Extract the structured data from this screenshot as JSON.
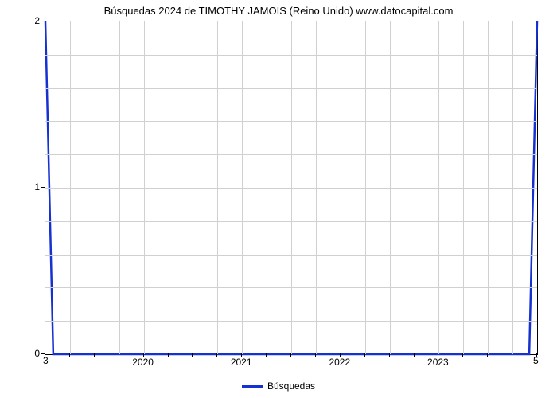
{
  "chart": {
    "type": "line",
    "title": "Búsquedas 2024 de TIMOTHY JAMOIS (Reino Unido) www.datocapital.com",
    "title_fontsize": 13,
    "background_color": "#ffffff",
    "grid_color": "#d0d0d0",
    "axis_color": "#000000",
    "series": [
      {
        "name": "Búsquedas",
        "color": "#1531d1",
        "line_width": 2.5,
        "x": [
          2019.0,
          2019.08,
          2023.92,
          2024.0
        ],
        "y": [
          2.0,
          0.0,
          0.0,
          2.0
        ]
      }
    ],
    "xaxis": {
      "lim": [
        2019.0,
        2024.0
      ],
      "tick_positions": [
        2020,
        2021,
        2022,
        2023
      ],
      "tick_labels": [
        "2020",
        "2021",
        "2022",
        "2023"
      ],
      "grid_minor_count": 4,
      "left_corner_value": "3",
      "right_corner_value": "5"
    },
    "yaxis": {
      "lim": [
        0,
        2
      ],
      "tick_positions": [
        0,
        1,
        2
      ],
      "tick_labels": [
        "0",
        "1",
        "2"
      ],
      "grid_minor_count": 5
    },
    "legend": {
      "label": "Búsquedas",
      "position": "bottom-center"
    },
    "label_fontsize": 12
  }
}
